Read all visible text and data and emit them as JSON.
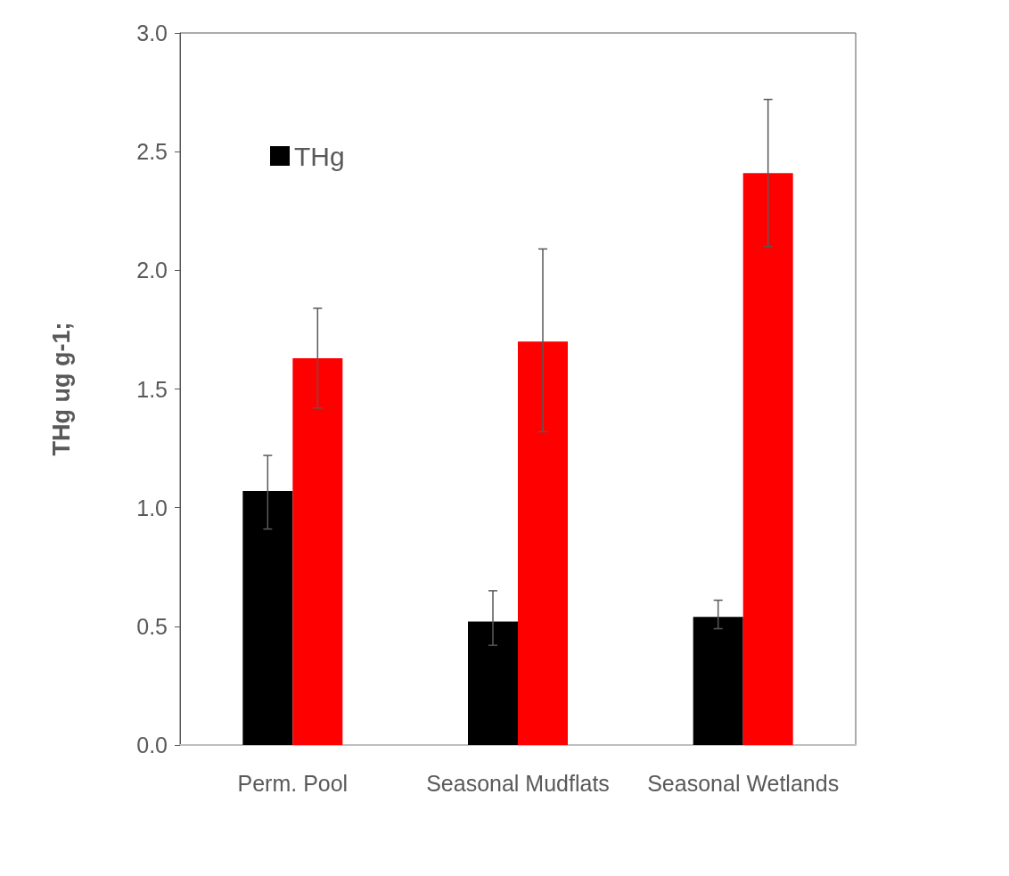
{
  "chart_data": {
    "type": "bar",
    "ylabel": "THg ug g-1;",
    "categories": [
      "Perm. Pool",
      "Seasonal Mudflats",
      "Seasonal Wetlands"
    ],
    "series": [
      {
        "name": "THg",
        "color": "#000000",
        "values": [
          1.07,
          0.52,
          0.54
        ],
        "errors": [
          [
            0.91,
            1.22
          ],
          [
            0.42,
            0.65
          ],
          [
            0.49,
            0.61
          ]
        ]
      },
      {
        "color": "#ff0000",
        "values": [
          1.63,
          1.7,
          2.41
        ],
        "errors": [
          [
            1.42,
            1.84
          ],
          [
            1.32,
            2.09
          ],
          [
            2.1,
            2.72
          ]
        ]
      }
    ],
    "ylim": [
      0,
      3
    ],
    "yticks": [
      {
        "value": 0,
        "label": "0.0"
      },
      {
        "value": 0.5,
        "label": "0.5"
      },
      {
        "value": 1,
        "label": "1.0"
      },
      {
        "value": 1.5,
        "label": "1.5"
      },
      {
        "value": 2,
        "label": "2.0"
      },
      {
        "value": 2.5,
        "label": "2.5"
      },
      {
        "value": 3,
        "label": "3.0"
      }
    ],
    "grid": false,
    "legend": "top left"
  }
}
